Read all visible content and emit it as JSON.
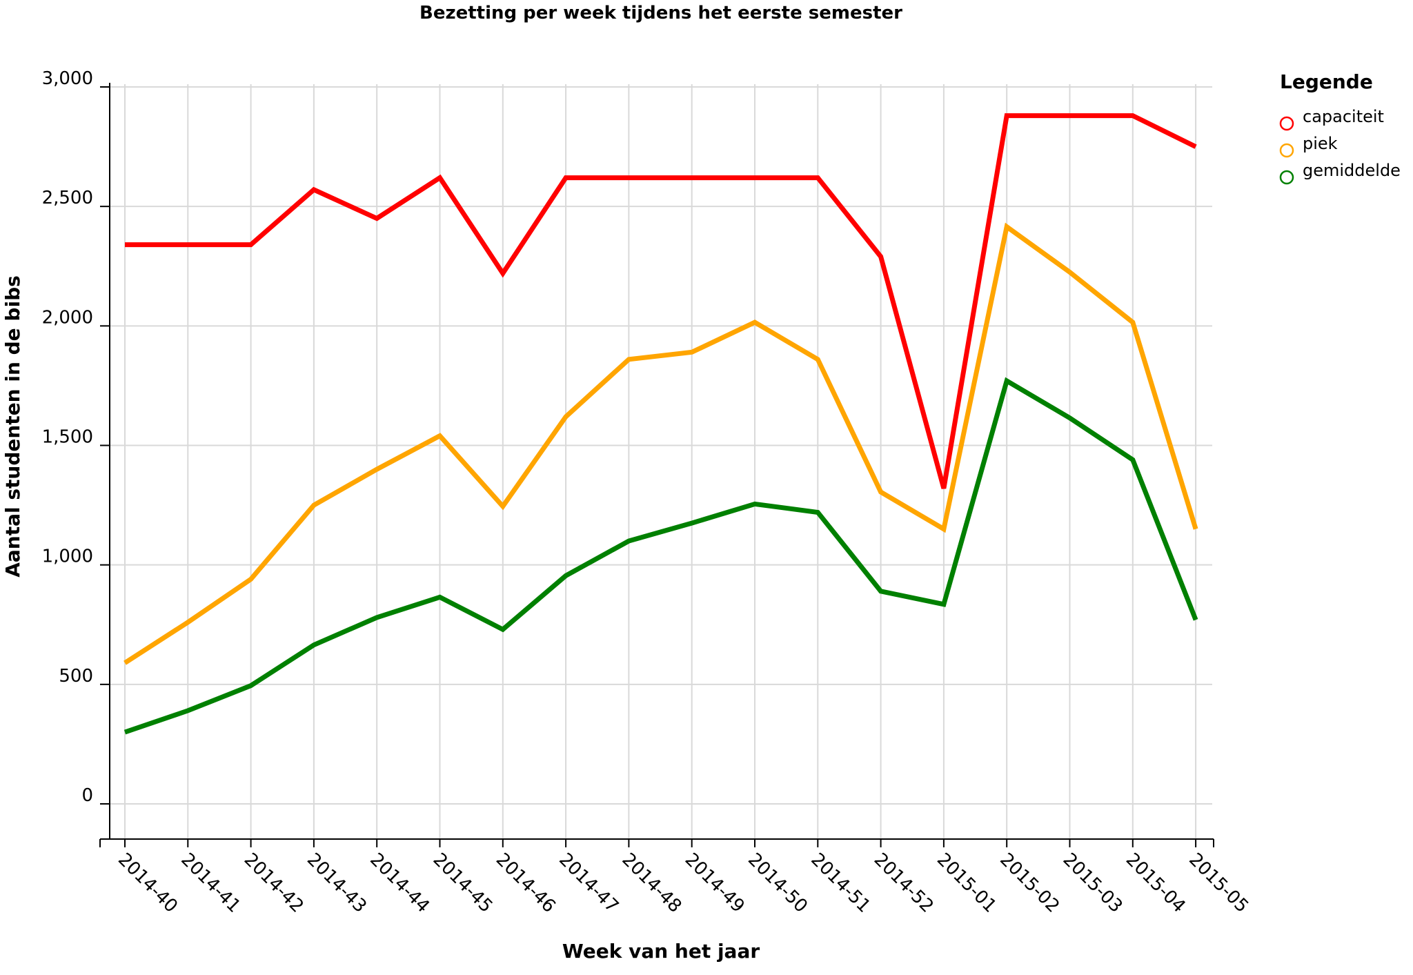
{
  "chart_data": {
    "type": "line",
    "title": "Bezetting per week tijdens het eerste semester",
    "xlabel": "Week van het jaar",
    "ylabel": "Aantal studenten in de bibs",
    "categories": [
      "2014-40",
      "2014-41",
      "2014-42",
      "2014-43",
      "2014-44",
      "2014-45",
      "2014-46",
      "2014-47",
      "2014-48",
      "2014-49",
      "2014-50",
      "2014-51",
      "2014-52",
      "2015-01",
      "2015-02",
      "2015-03",
      "2015-04",
      "2015-05"
    ],
    "ylim": [
      -150,
      3000
    ],
    "yticks": [
      0,
      500,
      1000,
      1500,
      2000,
      2500,
      3000
    ],
    "ytick_labels": [
      "0",
      "500",
      "1,000",
      "1,500",
      "2,000",
      "2,500",
      "3,000"
    ],
    "grid": true,
    "legend": {
      "title": "Legende",
      "placement": "right"
    },
    "series": [
      {
        "name": "capaciteit",
        "color": "#ff0000",
        "values": [
          2340,
          2340,
          2340,
          2570,
          2450,
          2620,
          2220,
          2620,
          2620,
          2620,
          2620,
          2620,
          2290,
          1320,
          2880,
          2880,
          2880,
          2750
        ]
      },
      {
        "name": "piek",
        "color": "#ffa500",
        "values": [
          590,
          760,
          940,
          1250,
          1400,
          1540,
          1245,
          1620,
          1860,
          1890,
          2015,
          1860,
          1305,
          1150,
          2415,
          2225,
          2015,
          1150
        ]
      },
      {
        "name": "gemiddelde",
        "color": "#008000",
        "values": [
          300,
          390,
          495,
          665,
          780,
          865,
          730,
          955,
          1100,
          1175,
          1255,
          1220,
          890,
          835,
          1770,
          1615,
          1440,
          770
        ]
      }
    ]
  }
}
